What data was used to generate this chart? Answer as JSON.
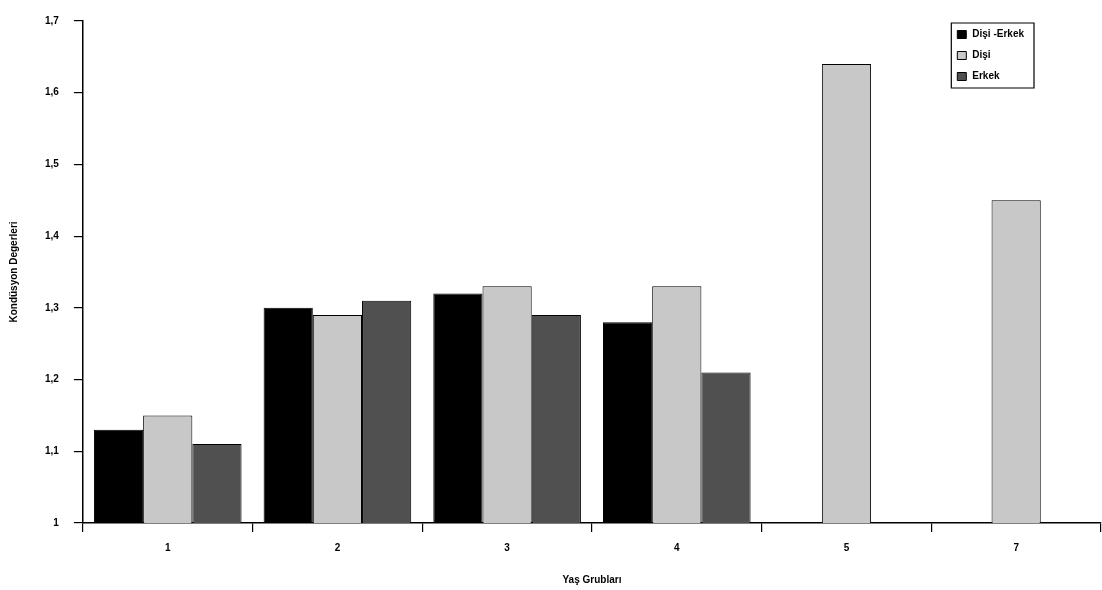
{
  "chart_data": {
    "type": "bar",
    "xlabel": "Yaş Grubları",
    "ylabel": "Kondüsyon Degerleri",
    "categories": [
      "1",
      "2",
      "3",
      "4",
      "5",
      "7"
    ],
    "series": [
      {
        "name": "Dişi -Erkek",
        "color": "#000000",
        "values": [
          1.13,
          1.3,
          1.32,
          1.28,
          null,
          null
        ]
      },
      {
        "name": "Dişi",
        "color": "#c8c8c8",
        "values": [
          1.15,
          1.29,
          1.33,
          1.33,
          1.64,
          1.45
        ]
      },
      {
        "name": "Erkek",
        "color": "#505050",
        "values": [
          1.11,
          1.31,
          1.29,
          1.21,
          null,
          null
        ]
      }
    ],
    "ylim": [
      1,
      1.7
    ],
    "yticks": [
      1,
      {
        "value": 1.1,
        "label": "1,1"
      },
      {
        "value": 1.2,
        "label": "1,2"
      },
      {
        "value": 1.3,
        "label": "1,3"
      },
      {
        "value": 1.4,
        "label": "1,4"
      },
      {
        "value": 1.5,
        "label": "1,5"
      },
      {
        "value": 1.6,
        "label": "1,6"
      },
      {
        "value": 1.7,
        "label": "1,7"
      }
    ],
    "grid": false,
    "legend": "top right"
  }
}
